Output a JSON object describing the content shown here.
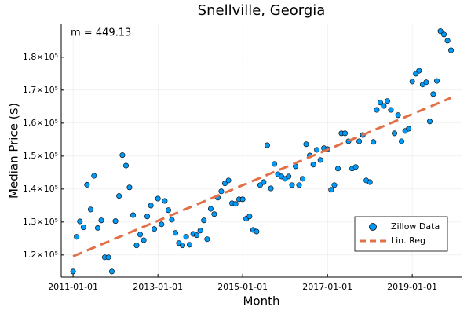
{
  "chart_data": {
    "type": "scatter",
    "title": "Snellville, Georgia",
    "x_label": "Month",
    "y_label": "Median Price ($)",
    "annotation": "m = 449.13",
    "grid": true,
    "legend": "bottom-right",
    "xlim": [
      "2010-09-21",
      "2020-03-01"
    ],
    "xticks": [
      "2011-01-01",
      "2013-01-01",
      "2015-01-01",
      "2017-01-01",
      "2019-01-01"
    ],
    "ylim": [
      113300,
      190200
    ],
    "yticks": [
      {
        "value": 120000,
        "label": "1.2×10⁵"
      },
      {
        "value": 130000,
        "label": "1.3×10⁵"
      },
      {
        "value": 140000,
        "label": "1.4×10⁵"
      },
      {
        "value": 150000,
        "label": "1.5×10⁵"
      },
      {
        "value": 160000,
        "label": "1.6×10⁵"
      },
      {
        "value": 170000,
        "label": "1.7×10⁵"
      },
      {
        "value": 180000,
        "label": "1.8×10⁵"
      }
    ],
    "series": [
      {
        "name": "Zillow Data",
        "type": "scatter",
        "color": "#009af9",
        "x": [
          "2011-01-01",
          "2011-02-01",
          "2011-03-01",
          "2011-04-01",
          "2011-05-01",
          "2011-06-01",
          "2011-07-01",
          "2011-08-01",
          "2011-09-01",
          "2011-10-01",
          "2011-11-01",
          "2011-12-01",
          "2012-01-01",
          "2012-02-01",
          "2012-03-01",
          "2012-04-01",
          "2012-05-01",
          "2012-06-01",
          "2012-07-01",
          "2012-08-01",
          "2012-09-01",
          "2012-10-01",
          "2012-11-01",
          "2012-12-01",
          "2013-01-01",
          "2013-02-01",
          "2013-03-01",
          "2013-04-01",
          "2013-05-01",
          "2013-06-01",
          "2013-07-01",
          "2013-08-01",
          "2013-09-01",
          "2013-10-01",
          "2013-11-01",
          "2013-12-01",
          "2014-01-01",
          "2014-02-01",
          "2014-03-01",
          "2014-04-01",
          "2014-05-01",
          "2014-06-01",
          "2014-07-01",
          "2014-08-01",
          "2014-09-01",
          "2014-10-01",
          "2014-11-01",
          "2014-12-01",
          "2015-01-01",
          "2015-02-01",
          "2015-03-01",
          "2015-04-01",
          "2015-05-01",
          "2015-06-01",
          "2015-07-01",
          "2015-08-01",
          "2015-09-01",
          "2015-10-01",
          "2015-11-01",
          "2015-12-01",
          "2016-01-01",
          "2016-02-01",
          "2016-03-01",
          "2016-04-01",
          "2016-05-01",
          "2016-06-01",
          "2016-07-01",
          "2016-08-01",
          "2016-09-01",
          "2016-10-01",
          "2016-11-01",
          "2016-12-01",
          "2017-01-01",
          "2017-02-01",
          "2017-03-01",
          "2017-04-01",
          "2017-05-01",
          "2017-06-01",
          "2017-07-01",
          "2017-08-01",
          "2017-09-01",
          "2017-10-01",
          "2017-11-01",
          "2017-12-01",
          "2018-01-01",
          "2018-02-01",
          "2018-03-01",
          "2018-04-01",
          "2018-05-01",
          "2018-06-01",
          "2018-07-01",
          "2018-08-01",
          "2018-09-01",
          "2018-10-01",
          "2018-11-01",
          "2018-12-01",
          "2019-01-01",
          "2019-02-01",
          "2019-03-01",
          "2019-04-01",
          "2019-05-01",
          "2019-06-01",
          "2019-07-01",
          "2019-08-01",
          "2019-09-01",
          "2019-10-01",
          "2019-11-01",
          "2019-12-01"
        ],
        "values": [
          115000,
          125500,
          130200,
          128400,
          141300,
          133800,
          144000,
          128200,
          130500,
          119300,
          119300,
          115000,
          130300,
          137900,
          150300,
          147100,
          140500,
          132100,
          122900,
          126200,
          124500,
          131700,
          135000,
          127900,
          137100,
          129300,
          136400,
          133600,
          130700,
          126700,
          123600,
          122900,
          125500,
          123100,
          126400,
          126000,
          127400,
          130500,
          124800,
          134000,
          132400,
          137400,
          139300,
          141700,
          142600,
          135700,
          135500,
          136900,
          136900,
          131000,
          131700,
          127600,
          127100,
          141200,
          142100,
          153300,
          140200,
          147600,
          144500,
          143800,
          143100,
          143800,
          141200,
          146900,
          141200,
          143100,
          153600,
          150200,
          147400,
          151900,
          148800,
          152400,
          152100,
          139800,
          141200,
          146200,
          156900,
          156900,
          154500,
          146200,
          146700,
          154500,
          156400,
          142600,
          142100,
          154300,
          164000,
          166200,
          165200,
          166700,
          164000,
          156900,
          162400,
          154500,
          157600,
          158300,
          172600,
          175000,
          175900,
          171700,
          172400,
          160500,
          168800,
          172800,
          187900,
          186900,
          185000,
          182100
        ]
      },
      {
        "name": "Lin. Reg",
        "type": "line",
        "color": "#e26f46",
        "x": [
          "2011-01-01",
          "2019-12-01"
        ],
        "values": [
          119600,
          167660
        ]
      }
    ]
  }
}
